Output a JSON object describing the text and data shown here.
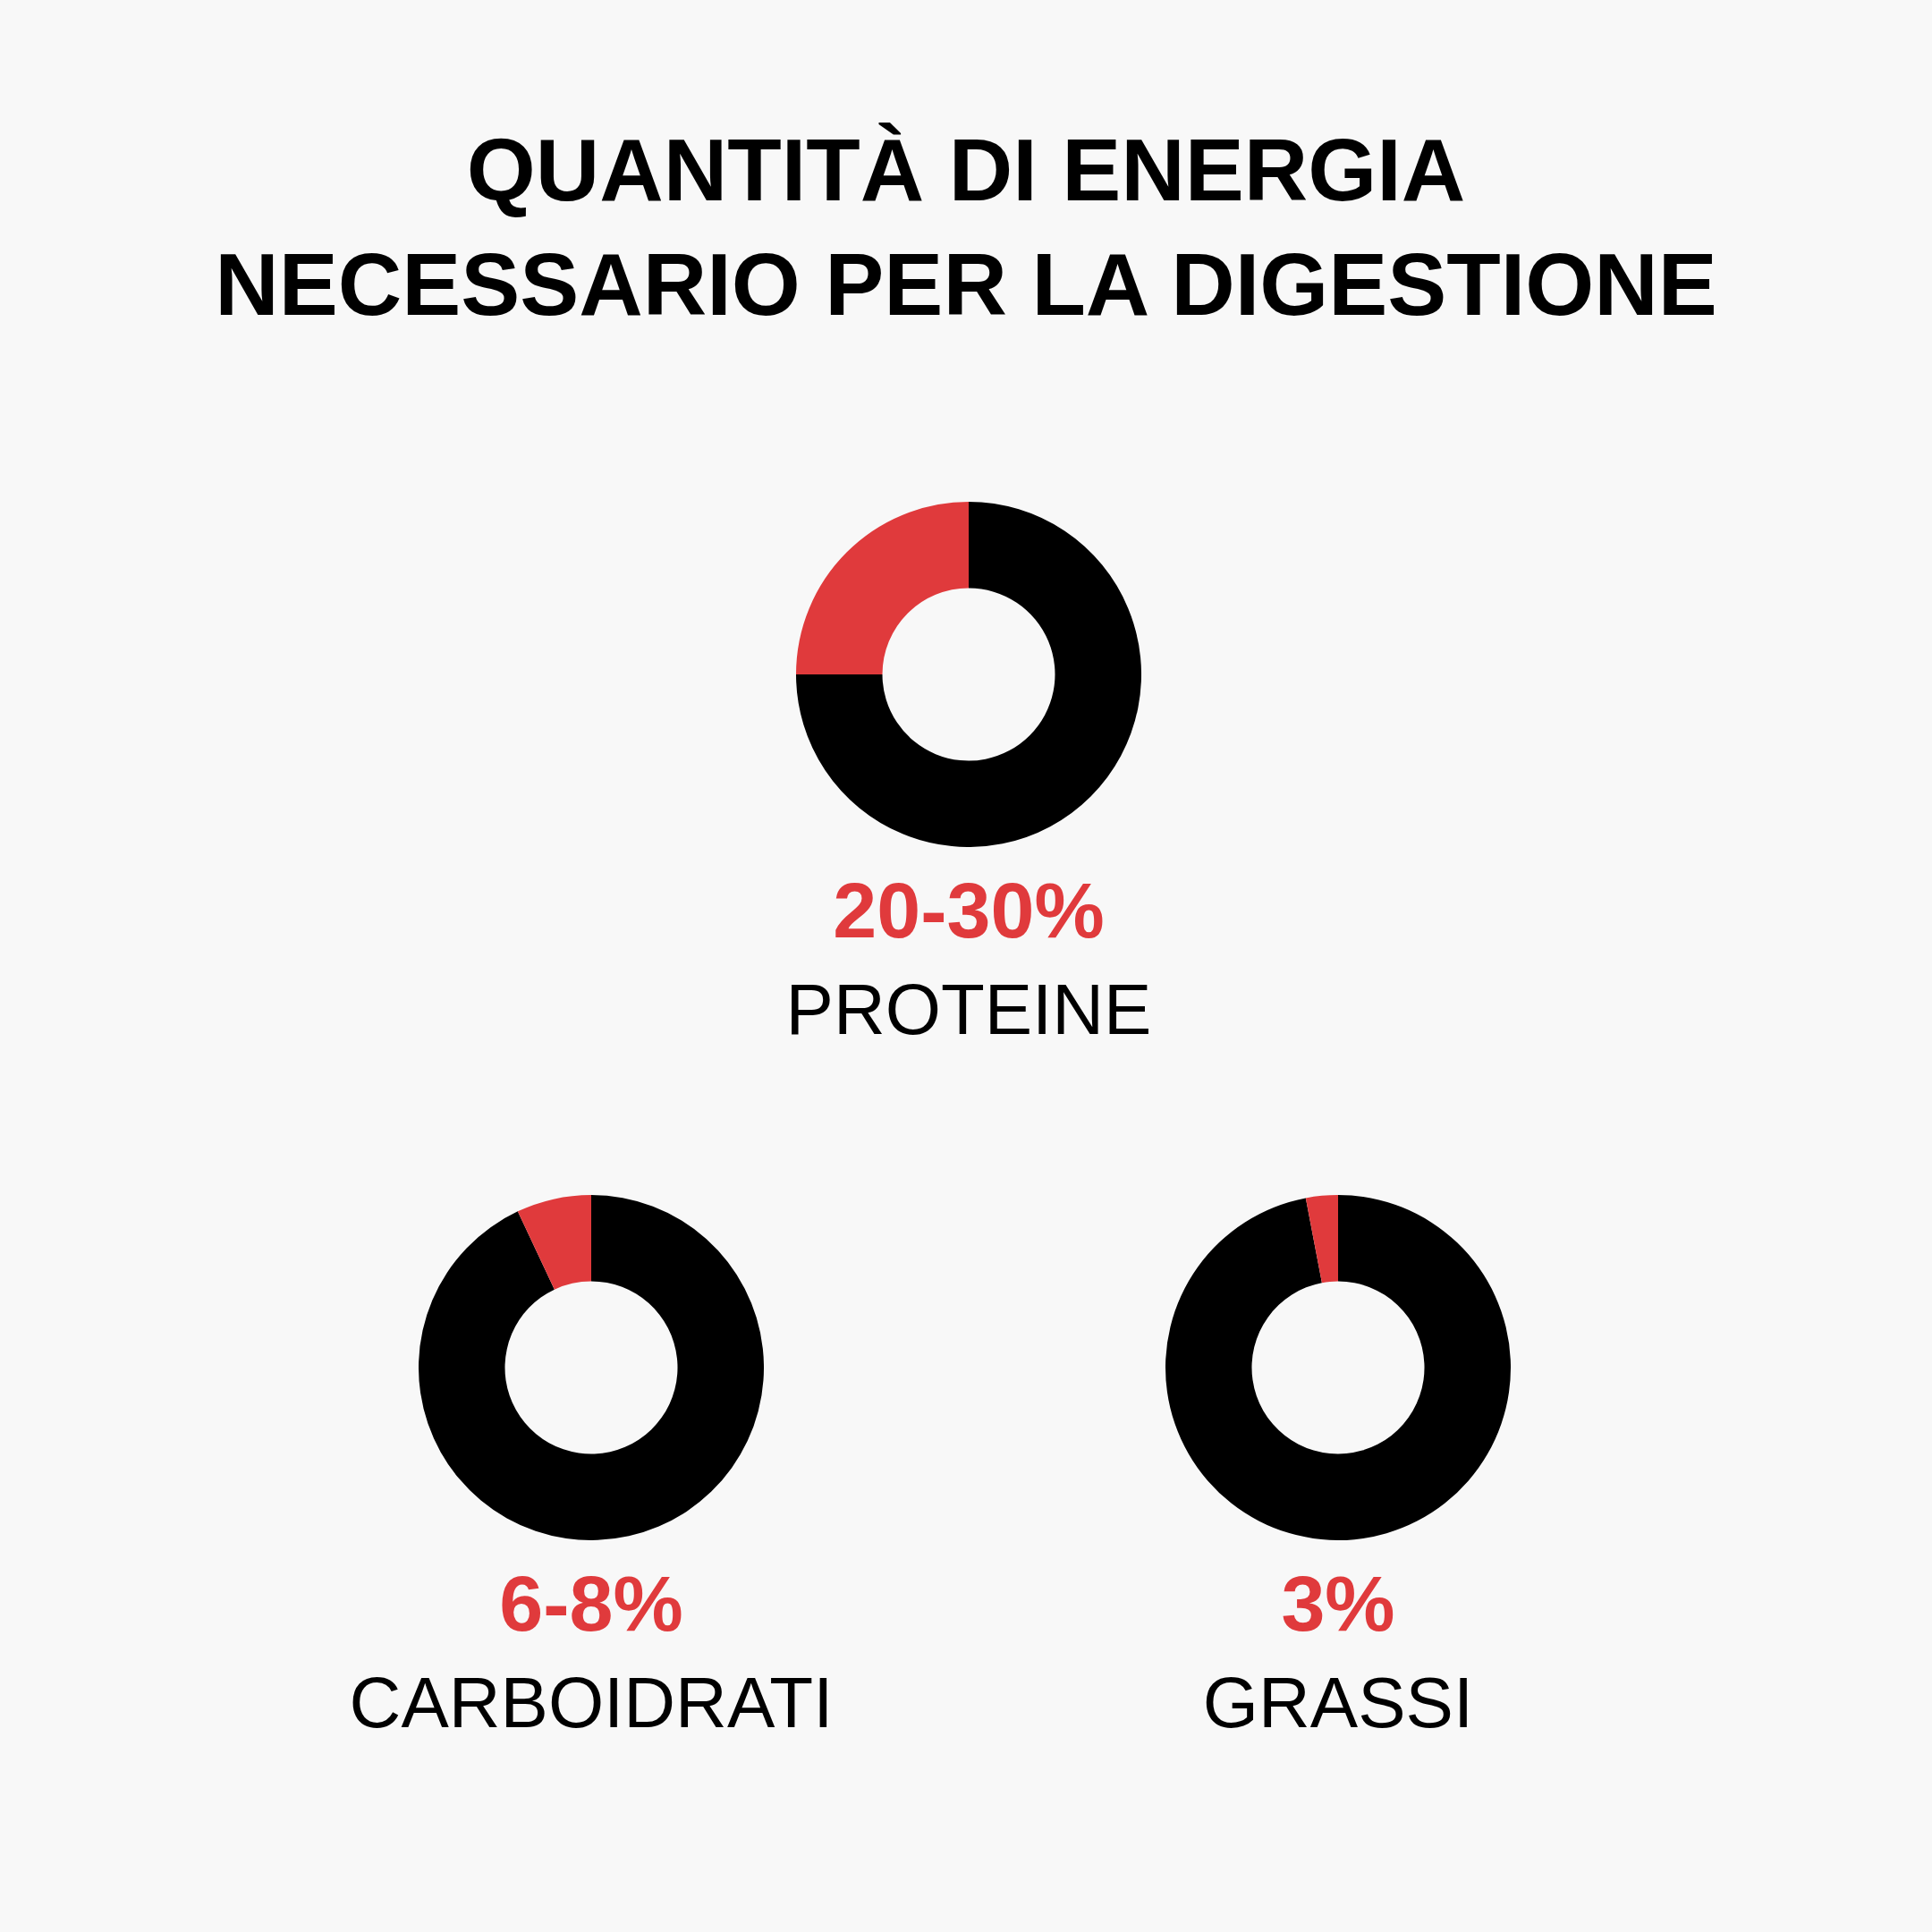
{
  "chart_data": [
    {
      "type": "other",
      "title": "QUANTITÀ DI ENERGIA NECESSARIO PER LA DIGESTIONE"
    },
    {
      "type": "donut",
      "title": "PROTEINE",
      "categories": [
        null,
        null
      ],
      "values": [
        75,
        25
      ],
      "colors": [
        "#000000",
        "#e03a3c"
      ],
      "annotations": [
        "20-30%"
      ]
    },
    {
      "type": "donut",
      "title": "CARBOIDRATI",
      "categories": [
        null,
        null
      ],
      "values": [
        93,
        7
      ],
      "colors": [
        "#000000",
        "#e03a3c"
      ],
      "annotations": [
        "6-8%"
      ]
    },
    {
      "type": "donut",
      "title": "GRASSI",
      "categories": [
        null,
        null
      ],
      "values": [
        97,
        3
      ],
      "colors": [
        "#000000",
        "#e03a3c"
      ],
      "annotations": [
        "3%"
      ]
    }
  ]
}
